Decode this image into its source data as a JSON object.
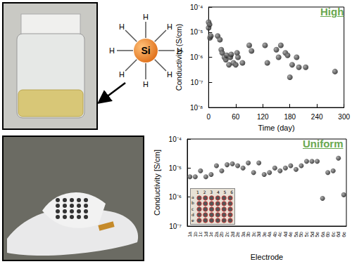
{
  "chart_data": [
    {
      "type": "scatter",
      "annotation": "High",
      "x": [
        0,
        0,
        2,
        3,
        5,
        20,
        25,
        28,
        30,
        35,
        38,
        40,
        45,
        48,
        50,
        55,
        60,
        63,
        65,
        75,
        90,
        95,
        125,
        130,
        150,
        155,
        160,
        170,
        175,
        180,
        185,
        195,
        200,
        215,
        280
      ],
      "values": [
        2.5e-05,
        1.5e-05,
        2e-05,
        6e-06,
        7e-06,
        7e-06,
        5e-06,
        2e-06,
        1.5e-06,
        1e-06,
        8e-07,
        1.2e-06,
        5e-07,
        1e-06,
        1.3e-06,
        6e-07,
        5e-07,
        1.5e-06,
        1e-06,
        6e-07,
        3e-06,
        1.8e-06,
        3e-06,
        6e-07,
        2e-06,
        1e-06,
        3e-06,
        1.5e-06,
        1.2e-06,
        1.6e-07,
        5e-07,
        1e-06,
        4e-07,
        4e-07,
        2.7e-07
      ],
      "xlabel": "Time (day)",
      "ylabel": "Conductivity (S/cm)",
      "xlim": [
        0,
        300
      ],
      "xticks": [
        0,
        60,
        120,
        180,
        240,
        300
      ],
      "ylim": [
        1e-08,
        0.0001
      ],
      "yticks": [
        {
          "value": 1e-08,
          "label": "10⁻⁸"
        },
        {
          "value": 1e-07,
          "label": "10⁻⁷"
        },
        {
          "value": 1e-06,
          "label": "10⁻⁶"
        },
        {
          "value": 1e-05,
          "label": "10⁻⁵"
        },
        {
          "value": 0.0001,
          "label": "10⁻⁴"
        }
      ],
      "log": "y",
      "grid": false,
      "color": "#111111",
      "marker": "circle"
    },
    {
      "type": "scatter",
      "annotation": "Uniform",
      "categories": [
        "1a",
        "1b",
        "1c",
        "1d",
        "1e",
        "2a",
        "2b",
        "2c",
        "2d",
        "2e",
        "3a",
        "3b",
        "3c",
        "3d",
        "3e",
        "4a",
        "4b",
        "4c",
        "4d",
        "4e",
        "5a",
        "5b",
        "5c",
        "5d",
        "5e",
        "6a",
        "6b",
        "6c",
        "6d",
        "6e"
      ],
      "values": [
        5e-06,
        5e-06,
        8e-06,
        5e-06,
        6e-06,
        1.2e-05,
        8e-06,
        1.3e-05,
        1.4e-05,
        1.2e-05,
        1e-05,
        1.5e-05,
        7e-06,
        1.5e-05,
        6e-06,
        7e-06,
        1e-05,
        8e-06,
        1e-05,
        1.2e-05,
        9e-06,
        1.2e-05,
        1.7e-05,
        1.7e-05,
        1.7e-05,
        9e-07,
        7e-06,
        8e-06,
        2.2e-05,
        1.2e-06
      ],
      "xlabel": "Electrode",
      "ylabel": "Conductivity [S/cm]",
      "ylim": [
        1e-07,
        0.0001
      ],
      "yticks": [
        {
          "value": 1e-07,
          "label": "10⁻⁷"
        },
        {
          "value": 1e-06,
          "label": "10⁻⁶"
        },
        {
          "value": 1e-05,
          "label": "10⁻⁵"
        },
        {
          "value": 0.0001,
          "label": "10⁻⁴"
        }
      ],
      "log": "y",
      "grid": false,
      "color": "#111111",
      "marker": "circle"
    }
  ],
  "molecule": {
    "center": "Si",
    "atoms": [
      "H",
      "H",
      "H",
      "H",
      "H",
      "H",
      "H",
      "H"
    ]
  },
  "inset": {
    "columns": [
      "1",
      "2",
      "3",
      "4",
      "5",
      "6"
    ],
    "rows": [
      "a",
      "b",
      "c",
      "d",
      "e"
    ]
  }
}
